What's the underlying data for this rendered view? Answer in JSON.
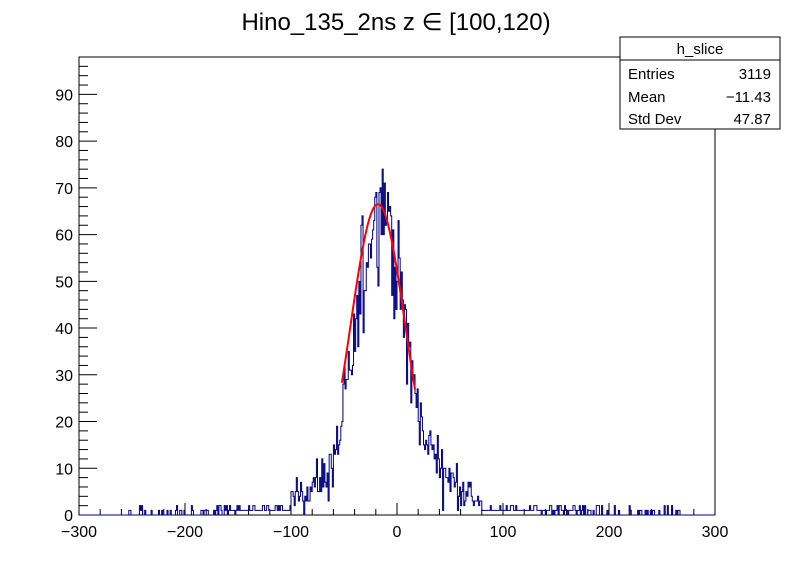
{
  "chart_data": {
    "type": "histogram",
    "title": "Hino_135_2ns z  ∈ [100,120)",
    "xlabel": "",
    "ylabel": "",
    "xlim": [
      -300,
      300
    ],
    "ylim": [
      0,
      98
    ],
    "x_ticks": [
      "−300",
      "−200",
      "−100",
      "0",
      "100",
      "200",
      "300"
    ],
    "y_ticks": [
      "0",
      "10",
      "20",
      "30",
      "40",
      "50",
      "60",
      "70",
      "80",
      "90"
    ],
    "grid": false,
    "bin_width": 1,
    "histogram_color": "#000080",
    "fit_color": "#ff0000",
    "stats_box": {
      "name": "h_slice",
      "position": "top-right",
      "rows": [
        {
          "label": "Entries",
          "value": "3119"
        },
        {
          "label": "Mean",
          "value": "−11.43"
        },
        {
          "label": "Std Dev",
          "value": "47.87"
        }
      ]
    },
    "fit": {
      "type": "gaussian",
      "constant": 66.5,
      "mean": -18,
      "sigma": 26,
      "range": [
        -52,
        17
      ]
    },
    "histogram_profile": [
      {
        "x": -300,
        "y": 0
      },
      {
        "x": -160,
        "y": 0.5
      },
      {
        "x": -120,
        "y": 1.5
      },
      {
        "x": -100,
        "y": 3
      },
      {
        "x": -90,
        "y": 5
      },
      {
        "x": -80,
        "y": 6
      },
      {
        "x": -70,
        "y": 8
      },
      {
        "x": -60,
        "y": 11
      },
      {
        "x": -55,
        "y": 15
      },
      {
        "x": -50,
        "y": 23
      },
      {
        "x": -45,
        "y": 28
      },
      {
        "x": -40,
        "y": 36
      },
      {
        "x": -35,
        "y": 46
      },
      {
        "x": -30,
        "y": 55
      },
      {
        "x": -25,
        "y": 62
      },
      {
        "x": -20,
        "y": 65
      },
      {
        "x": -15,
        "y": 70
      },
      {
        "x": -10,
        "y": 66
      },
      {
        "x": -5,
        "y": 60
      },
      {
        "x": 0,
        "y": 52
      },
      {
        "x": 5,
        "y": 44
      },
      {
        "x": 10,
        "y": 37
      },
      {
        "x": 15,
        "y": 29
      },
      {
        "x": 20,
        "y": 22
      },
      {
        "x": 25,
        "y": 18
      },
      {
        "x": 30,
        "y": 15
      },
      {
        "x": 40,
        "y": 11
      },
      {
        "x": 50,
        "y": 8
      },
      {
        "x": 60,
        "y": 6
      },
      {
        "x": 70,
        "y": 4
      },
      {
        "x": 80,
        "y": 3
      },
      {
        "x": 100,
        "y": 1.8
      },
      {
        "x": 140,
        "y": 0.8
      },
      {
        "x": 200,
        "y": 0.3
      },
      {
        "x": 300,
        "y": 0
      }
    ]
  }
}
